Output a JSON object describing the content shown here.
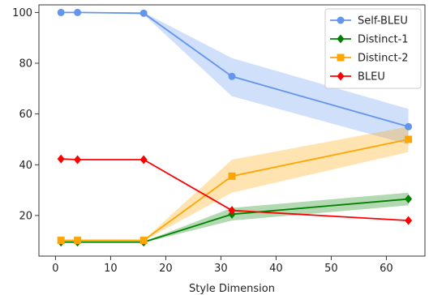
{
  "chart_data": {
    "type": "line",
    "title": "",
    "xlabel": "Style Dimension",
    "ylabel": "",
    "xlim": [
      -3,
      67
    ],
    "ylim": [
      4,
      103
    ],
    "xticks": [
      0,
      10,
      20,
      30,
      40,
      50,
      60
    ],
    "yticks": [
      20,
      40,
      60,
      80,
      100
    ],
    "grid": false,
    "legend_position": "top-right",
    "x": [
      1,
      4,
      16,
      32,
      64
    ],
    "series": [
      {
        "name": "Self-BLEU",
        "color": "#6495ED",
        "marker": "circle",
        "values": [
          100,
          100,
          99.7,
          74.8,
          55
        ],
        "band_lower": [
          100,
          100,
          99.2,
          67,
          48
        ],
        "band_upper": [
          100,
          100,
          100,
          82,
          62
        ]
      },
      {
        "name": "Distinct-1",
        "color": "#008000",
        "marker": "diamond",
        "values": [
          9.5,
          9.5,
          9.5,
          20.5,
          26.5
        ],
        "band_lower": [
          9.3,
          9.3,
          9.3,
          18,
          24
        ],
        "band_upper": [
          9.7,
          9.7,
          9.7,
          23,
          29
        ]
      },
      {
        "name": "Distinct-2",
        "color": "#FFA500",
        "marker": "square",
        "values": [
          10.2,
          10.2,
          10.2,
          35.5,
          50
        ],
        "band_lower": [
          10,
          10,
          10,
          29,
          45
        ],
        "band_upper": [
          10.4,
          10.4,
          10.4,
          42,
          55
        ]
      },
      {
        "name": "BLEU",
        "color": "#FF0000",
        "marker": "diamond",
        "values": [
          42.3,
          42,
          42,
          22,
          18
        ],
        "band_lower": [
          42.3,
          42,
          42,
          22,
          18
        ],
        "band_upper": [
          42.3,
          42,
          42,
          22,
          18
        ]
      }
    ]
  }
}
